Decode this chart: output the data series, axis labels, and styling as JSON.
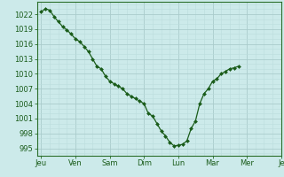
{
  "x_values": [
    0,
    0.5,
    1,
    1.5,
    2,
    2.5,
    3,
    3.5,
    4,
    4.5,
    5,
    5.5,
    6,
    6.5,
    7,
    7.5,
    8,
    8.5,
    9,
    9.5,
    10,
    10.5,
    11,
    11.5,
    12,
    12.5,
    13,
    13.5,
    14,
    14.5,
    15,
    15.5,
    16,
    16.5,
    17,
    17.5,
    18,
    18.5,
    19,
    19.5,
    20,
    20.5,
    21,
    21.5,
    22,
    22.5,
    23
  ],
  "y_values": [
    1022.5,
    1023.1,
    1022.8,
    1021.5,
    1020.5,
    1019.5,
    1018.8,
    1018.0,
    1017.0,
    1016.5,
    1015.5,
    1014.5,
    1013.0,
    1011.5,
    1011.0,
    1009.5,
    1008.5,
    1008.0,
    1007.5,
    1007.0,
    1006.0,
    1005.5,
    1005.0,
    1004.5,
    1004.0,
    1002.0,
    1001.5,
    1000.0,
    998.5,
    997.5,
    996.2,
    995.5,
    995.6,
    995.8,
    996.5,
    999.0,
    1000.5,
    1004.0,
    1006.0,
    1007.0,
    1008.5,
    1009.0,
    1010.0,
    1010.5,
    1011.0,
    1011.2,
    1011.5
  ],
  "x_ticks_pos": [
    0,
    4,
    8,
    12,
    16,
    20,
    24,
    28
  ],
  "x_tick_labels": [
    "Jeu",
    "Ven",
    "Sam",
    "Dim",
    "Lun",
    "Mar",
    "Mer",
    "Je"
  ],
  "y_ticks": [
    995,
    998,
    1001,
    1004,
    1007,
    1010,
    1013,
    1016,
    1019,
    1022
  ],
  "ylim": [
    993.5,
    1024.5
  ],
  "xlim": [
    -0.5,
    27
  ],
  "line_color": "#1a5c1a",
  "marker": "D",
  "marker_size": 2.0,
  "bg_color": "#cceaea",
  "grid_major_color": "#aacccc",
  "grid_minor_color": "#bbdddd",
  "tick_label_color": "#1a5c1a",
  "axis_color": "#2a6e2a",
  "figwidth": 3.2,
  "figheight": 2.0,
  "dpi": 100
}
